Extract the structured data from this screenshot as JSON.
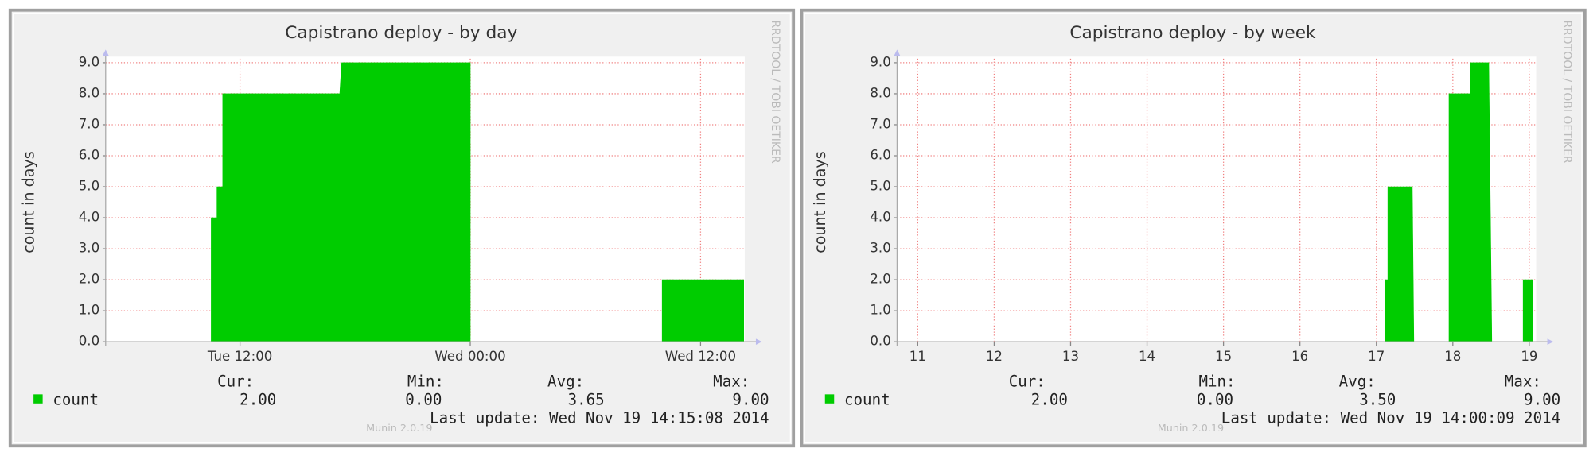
{
  "chart_data": [
    {
      "type": "area",
      "title": "Capistrano deploy - by day",
      "y_label": "count in days",
      "x": [
        5,
        10.5,
        10.5,
        10.8,
        10.8,
        11.1,
        11.1,
        17.2,
        17.3,
        24,
        24,
        34,
        34,
        38.25
      ],
      "series": [
        {
          "name": "count",
          "color": "#00cc00",
          "values": [
            0,
            0,
            4,
            4,
            5,
            5,
            8,
            8,
            9,
            9,
            0,
            0,
            2,
            2
          ]
        }
      ],
      "xlim": [
        5,
        38.3
      ],
      "xticks": [
        {
          "value": 12,
          "label": "Tue 12:00"
        },
        {
          "value": 24,
          "label": "Wed 00:00"
        },
        {
          "value": 36,
          "label": "Wed 12:00"
        }
      ],
      "ylim": [
        0,
        9
      ],
      "yticks": [
        {
          "value": 0,
          "label": "0.0"
        },
        {
          "value": 1,
          "label": "1.0"
        },
        {
          "value": 2,
          "label": "2.0"
        },
        {
          "value": 3,
          "label": "3.0"
        },
        {
          "value": 4,
          "label": "4.0"
        },
        {
          "value": 5,
          "label": "5.0"
        },
        {
          "value": 6,
          "label": "6.0"
        },
        {
          "value": 7,
          "label": "7.0"
        },
        {
          "value": 8,
          "label": "8.0"
        },
        {
          "value": 9,
          "label": "9.0"
        }
      ],
      "grid": true,
      "summary": {
        "labels": [
          "Cur:",
          "Min:",
          "Avg:",
          "Max:"
        ],
        "values": [
          "2.00",
          "0.00",
          "3.65",
          "9.00"
        ]
      },
      "last_update": "Last update: Wed Nov 19 14:15:08 2014",
      "watermark": "RRDTOOL / TOBI OETIKER",
      "footer": "Munin 2.0.19"
    },
    {
      "type": "area",
      "title": "Capistrano deploy - by week",
      "y_label": "count in days",
      "x": [
        10.73,
        17.11,
        17.11,
        17.15,
        17.15,
        17.47,
        17.49,
        17.95,
        17.95,
        18.23,
        18.23,
        18.47,
        18.51,
        18.92,
        18.92,
        19.05
      ],
      "series": [
        {
          "name": "count",
          "color": "#00cc00",
          "values": [
            0,
            0,
            2,
            2,
            5,
            5,
            0,
            0,
            8,
            8,
            9,
            9,
            0,
            0,
            2,
            2
          ]
        }
      ],
      "xlim": [
        10.73,
        19.09
      ],
      "xticks": [
        11,
        12,
        13,
        14,
        15,
        16,
        17,
        18,
        19
      ],
      "ylim": [
        0,
        9
      ],
      "yticks": [
        {
          "value": 0,
          "label": "0.0"
        },
        {
          "value": 1,
          "label": "1.0"
        },
        {
          "value": 2,
          "label": "2.0"
        },
        {
          "value": 3,
          "label": "3.0"
        },
        {
          "value": 4,
          "label": "4.0"
        },
        {
          "value": 5,
          "label": "5.0"
        },
        {
          "value": 6,
          "label": "6.0"
        },
        {
          "value": 7,
          "label": "7.0"
        },
        {
          "value": 8,
          "label": "8.0"
        },
        {
          "value": 9,
          "label": "9.0"
        }
      ],
      "grid": true,
      "summary": {
        "labels": [
          "Cur:",
          "Min:",
          "Avg:",
          "Max:"
        ],
        "values": [
          "2.00",
          "0.00",
          "3.50",
          "9.00"
        ]
      },
      "last_update": "Last update: Wed Nov 19 14:00:09 2014",
      "watermark": "RRDTOOL / TOBI OETIKER",
      "footer": "Munin 2.0.19"
    }
  ]
}
